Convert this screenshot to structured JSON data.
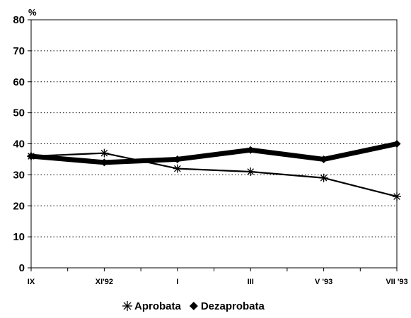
{
  "chart_data": {
    "type": "line",
    "title": "",
    "unit_label": "%",
    "xlabel": "",
    "ylabel": "",
    "categories": [
      "IX",
      "XI'92",
      "I",
      "III",
      "V '93",
      "VII '93"
    ],
    "ylim": [
      0,
      80
    ],
    "yticks": [
      "0",
      "10",
      "20",
      "30",
      "40",
      "50",
      "60",
      "70",
      "80"
    ],
    "grid": "horizontal dotted",
    "legend_position": "bottom",
    "series": [
      {
        "name": "Aprobata",
        "marker": "asterisk",
        "color": "#000000",
        "values": [
          36,
          37,
          32,
          31,
          29,
          23
        ]
      },
      {
        "name": "Dezaprobata",
        "marker": "diamond",
        "color": "#000000",
        "values": [
          36,
          34,
          35,
          38,
          35,
          40
        ]
      }
    ]
  }
}
